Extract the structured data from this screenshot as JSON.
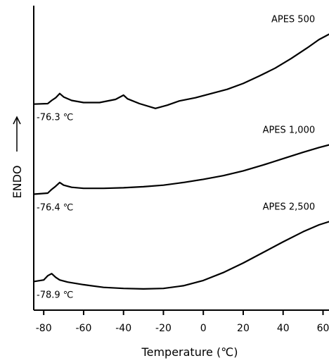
{
  "chart_data": {
    "type": "line",
    "title": "",
    "xlabel": "Temperature (℃)",
    "ylabel": "ENDO",
    "xlim": [
      -85,
      63
    ],
    "xticks": [
      -80,
      -60,
      -40,
      -20,
      0,
      20,
      40,
      60
    ],
    "yticks": [],
    "grid": false,
    "legend": "none",
    "series": [
      {
        "name": "APES 500",
        "glass_transition_label": "-76.3 ℃",
        "x": [
          -85,
          -78,
          -76,
          -74,
          -72,
          -70,
          -66,
          -60,
          -52,
          -44,
          -40,
          -38,
          -32,
          -24,
          -18,
          -12,
          -4,
          4,
          12,
          20,
          28,
          36,
          44,
          52,
          58,
          63
        ],
        "y": [
          7.78,
          7.8,
          7.92,
          8.02,
          8.18,
          8.05,
          7.92,
          7.84,
          7.84,
          7.96,
          8.12,
          7.98,
          7.8,
          7.62,
          7.74,
          7.9,
          8.02,
          8.18,
          8.34,
          8.56,
          8.84,
          9.14,
          9.5,
          9.9,
          10.22,
          10.42
        ]
      },
      {
        "name": "APES 1,000",
        "glass_transition_label": "-76.4 ℃",
        "x": [
          -85,
          -78,
          -76,
          -74,
          -72,
          -70,
          -66,
          -60,
          -50,
          -40,
          -30,
          -20,
          -10,
          0,
          10,
          20,
          30,
          40,
          50,
          58,
          63
        ],
        "y": [
          4.38,
          4.42,
          4.56,
          4.68,
          4.82,
          4.72,
          4.64,
          4.6,
          4.6,
          4.62,
          4.66,
          4.72,
          4.82,
          4.94,
          5.08,
          5.26,
          5.48,
          5.72,
          5.96,
          6.14,
          6.24
        ]
      },
      {
        "name": "APES 2,500",
        "glass_transition_label": "-78.9 ℃",
        "x": [
          -85,
          -80,
          -78,
          -76,
          -74,
          -72,
          -68,
          -60,
          -50,
          -40,
          -30,
          -20,
          -10,
          0,
          10,
          20,
          30,
          40,
          50,
          58,
          63
        ],
        "y": [
          1.08,
          1.14,
          1.3,
          1.38,
          1.24,
          1.14,
          1.06,
          0.96,
          0.86,
          0.82,
          0.8,
          0.82,
          0.92,
          1.12,
          1.42,
          1.78,
          2.18,
          2.58,
          2.96,
          3.22,
          3.34
        ]
      }
    ]
  }
}
